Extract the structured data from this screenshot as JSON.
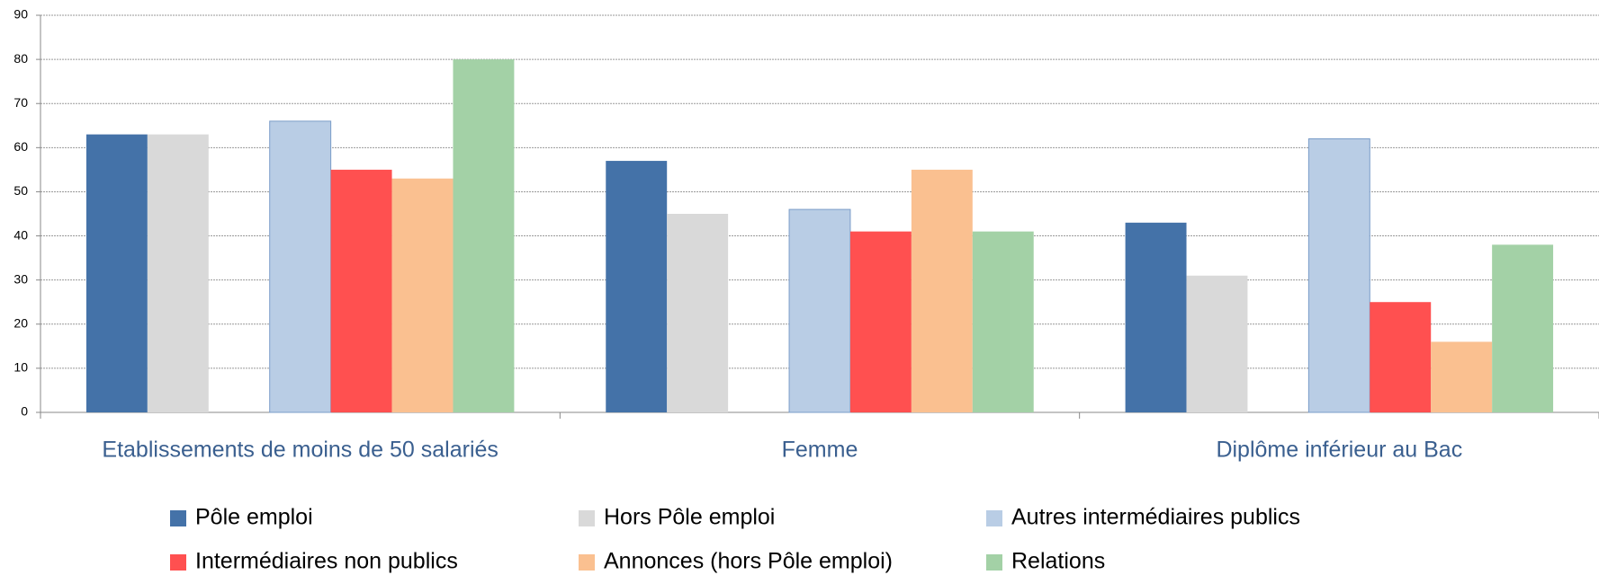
{
  "chart_data": {
    "type": "bar",
    "categories": [
      "Etablissements de moins de 50 salariés",
      "Femme",
      "Diplôme inférieur au Bac"
    ],
    "series": [
      {
        "name": "Pôle emploi",
        "color": "#4472a8",
        "values": [
          63,
          57,
          43
        ]
      },
      {
        "name": "Hors Pôle emploi",
        "color": "#d9d9d9",
        "values": [
          63,
          45,
          31
        ]
      },
      {
        "name": "Autres intermédiaires publics",
        "color": "#b9cde5",
        "values": [
          66,
          46,
          62
        ]
      },
      {
        "name": "Intermédiaires non publics",
        "color": "#ff5050",
        "values": [
          55,
          41,
          25
        ]
      },
      {
        "name": "Annonces (hors Pôle emploi)",
        "color": "#fac090",
        "values": [
          53,
          55,
          16
        ]
      },
      {
        "name": "Relations",
        "color": "#a3d1a6",
        "values": [
          80,
          41,
          38
        ]
      }
    ],
    "ylim": [
      0,
      90
    ],
    "yticks": [
      0,
      10,
      20,
      30,
      40,
      50,
      60,
      70,
      80,
      90
    ],
    "grid": true
  }
}
